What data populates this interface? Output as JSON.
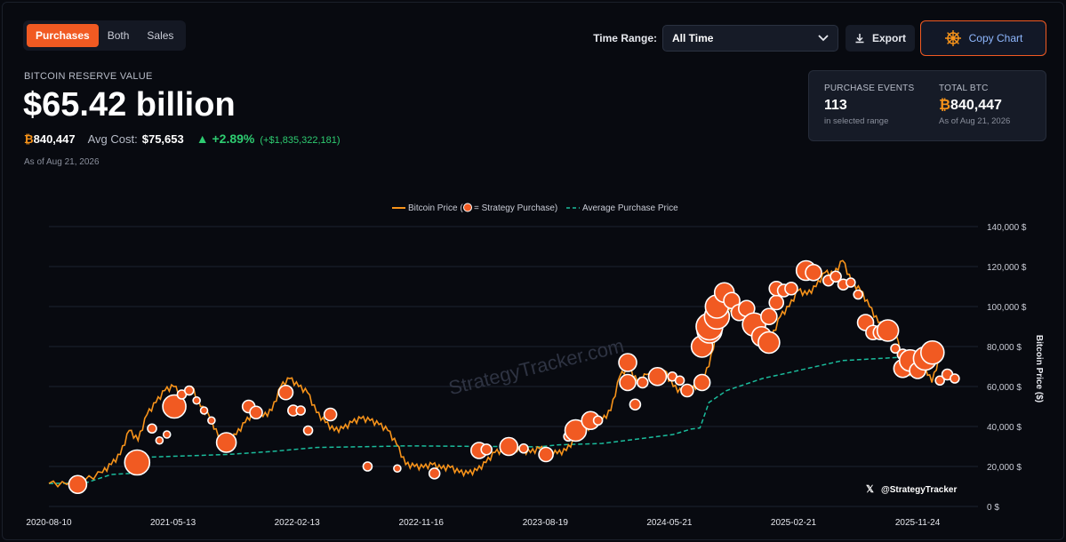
{
  "tabs": [
    {
      "label": "Purchases",
      "active": true
    },
    {
      "label": "Both",
      "active": false
    },
    {
      "label": "Sales",
      "active": false
    }
  ],
  "time_range": {
    "label": "Time Range:",
    "value": "All Time"
  },
  "export_label": "Export",
  "copy_chart_label": "Copy Chart",
  "header": {
    "reserve_label": "BITCOIN RESERVE VALUE",
    "reserve_value": "$65.42 billion",
    "btc_symbol": "₿",
    "btc_amount": "840,447",
    "avg_cost_label": "Avg Cost:",
    "avg_cost_value": "$75,653",
    "change_pct": "▲ +2.89%",
    "change_abs": "(+$1,835,322,181)",
    "as_of": "As of Aug 21, 2026"
  },
  "stats": {
    "purchase_events_label": "PURCHASE EVENTS",
    "purchase_events_value": "113",
    "purchase_events_sub": "in selected range",
    "total_btc_label": "TOTAL BTC",
    "total_btc_value": "840,447",
    "total_btc_sub": "As of Aug 21, 2026"
  },
  "colors": {
    "accent": "#f15a22",
    "price_line": "#f7931a",
    "avg_line": "#1abc9c",
    "positive": "#2ecc71"
  },
  "chart_data": {
    "type": "line",
    "legend": {
      "price_label_pre": "Bitcoin Price (",
      "price_label_post": " = Strategy Purchase)",
      "avg_label": "Average Purchase Price",
      "position": "top-center"
    },
    "ylabel": "Bitcoin Price ($)",
    "ylim": [
      0,
      140000
    ],
    "y_ticks": [
      "0 $",
      "20,000 $",
      "40,000 $",
      "60,000 $",
      "80,000 $",
      "100,000 $",
      "120,000 $",
      "140,000 $"
    ],
    "x_ticks": [
      "2020-08-10",
      "2021-05-13",
      "2022-02-13",
      "2022-11-16",
      "2023-08-19",
      "2024-05-21",
      "2025-02-21",
      "2025-11-24"
    ],
    "watermark": "StrategyTracker.com",
    "handle": "@StrategyTracker",
    "grid": true,
    "series": [
      {
        "name": "Bitcoin Price",
        "points": [
          [
            0,
            11500
          ],
          [
            0.02,
            11000
          ],
          [
            0.04,
            13000
          ],
          [
            0.06,
            17000
          ],
          [
            0.07,
            21000
          ],
          [
            0.08,
            26000
          ],
          [
            0.09,
            38000
          ],
          [
            0.1,
            33000
          ],
          [
            0.11,
            46000
          ],
          [
            0.12,
            52000
          ],
          [
            0.13,
            58000
          ],
          [
            0.14,
            60000
          ],
          [
            0.15,
            55000
          ],
          [
            0.16,
            60000
          ],
          [
            0.17,
            50000
          ],
          [
            0.18,
            45000
          ],
          [
            0.19,
            35000
          ],
          [
            0.2,
            32000
          ],
          [
            0.21,
            36000
          ],
          [
            0.22,
            42000
          ],
          [
            0.23,
            47000
          ],
          [
            0.24,
            45000
          ],
          [
            0.25,
            48000
          ],
          [
            0.26,
            60000
          ],
          [
            0.27,
            64000
          ],
          [
            0.28,
            60000
          ],
          [
            0.29,
            57000
          ],
          [
            0.3,
            47000
          ],
          [
            0.31,
            42000
          ],
          [
            0.32,
            38000
          ],
          [
            0.33,
            39000
          ],
          [
            0.34,
            42000
          ],
          [
            0.35,
            44000
          ],
          [
            0.36,
            43000
          ],
          [
            0.37,
            41000
          ],
          [
            0.38,
            38000
          ],
          [
            0.39,
            31000
          ],
          [
            0.4,
            21000
          ],
          [
            0.41,
            20000
          ],
          [
            0.42,
            19500
          ],
          [
            0.43,
            21000
          ],
          [
            0.44,
            19000
          ],
          [
            0.45,
            19500
          ],
          [
            0.46,
            17000
          ],
          [
            0.47,
            16500
          ],
          [
            0.48,
            18000
          ],
          [
            0.49,
            22000
          ],
          [
            0.5,
            27000
          ],
          [
            0.51,
            28000
          ],
          [
            0.52,
            30000
          ],
          [
            0.53,
            28000
          ],
          [
            0.54,
            27000
          ],
          [
            0.55,
            29000
          ],
          [
            0.56,
            27500
          ],
          [
            0.57,
            26500
          ],
          [
            0.58,
            28000
          ],
          [
            0.59,
            34000
          ],
          [
            0.6,
            37000
          ],
          [
            0.61,
            42000
          ],
          [
            0.62,
            43000
          ],
          [
            0.63,
            48000
          ],
          [
            0.64,
            65000
          ],
          [
            0.65,
            70000
          ],
          [
            0.66,
            62000
          ],
          [
            0.67,
            66000
          ],
          [
            0.68,
            62000
          ],
          [
            0.69,
            68000
          ],
          [
            0.7,
            60000
          ],
          [
            0.71,
            57000
          ],
          [
            0.72,
            58000
          ],
          [
            0.73,
            62000
          ],
          [
            0.74,
            70000
          ],
          [
            0.75,
            90000
          ],
          [
            0.76,
            97000
          ],
          [
            0.77,
            100000
          ],
          [
            0.78,
            95000
          ],
          [
            0.79,
            85000
          ],
          [
            0.8,
            90000
          ],
          [
            0.81,
            84000
          ],
          [
            0.82,
            95000
          ],
          [
            0.83,
            100000
          ],
          [
            0.84,
            108000
          ],
          [
            0.85,
            106000
          ],
          [
            0.86,
            110000
          ],
          [
            0.87,
            117000
          ],
          [
            0.88,
            116000
          ],
          [
            0.89,
            123000
          ],
          [
            0.9,
            112000
          ],
          [
            0.91,
            108000
          ],
          [
            0.92,
            100000
          ],
          [
            0.93,
            92000
          ],
          [
            0.94,
            88000
          ],
          [
            0.95,
            86000
          ],
          [
            0.96,
            66000
          ],
          [
            0.97,
            68000
          ],
          [
            0.98,
            72000
          ],
          [
            0.99,
            62000
          ],
          [
            1.0,
            77000
          ]
        ]
      },
      {
        "name": "Average Purchase Price",
        "points": [
          [
            0,
            11500
          ],
          [
            0.04,
            11600
          ],
          [
            0.07,
            16000
          ],
          [
            0.09,
            16500
          ],
          [
            0.1,
            24500
          ],
          [
            0.2,
            26000
          ],
          [
            0.25,
            27500
          ],
          [
            0.3,
            29500
          ],
          [
            0.37,
            30000
          ],
          [
            0.4,
            30300
          ],
          [
            0.55,
            29800
          ],
          [
            0.57,
            30800
          ],
          [
            0.62,
            31500
          ],
          [
            0.7,
            36000
          ],
          [
            0.72,
            38700
          ],
          [
            0.73,
            39300
          ],
          [
            0.74,
            52000
          ],
          [
            0.76,
            58000
          ],
          [
            0.8,
            64000
          ],
          [
            0.83,
            67000
          ],
          [
            0.86,
            70000
          ],
          [
            0.89,
            73000
          ],
          [
            0.95,
            74500
          ],
          [
            1.0,
            75650
          ]
        ]
      }
    ],
    "purchases": [
      [
        0.02,
        11000,
        10
      ],
      [
        0.1,
        22000,
        14
      ],
      [
        0.12,
        39000,
        5
      ],
      [
        0.13,
        33000,
        4
      ],
      [
        0.14,
        36000,
        4
      ],
      [
        0.15,
        50000,
        13
      ],
      [
        0.16,
        56000,
        5
      ],
      [
        0.17,
        58000,
        5
      ],
      [
        0.18,
        53000,
        4
      ],
      [
        0.19,
        48000,
        4
      ],
      [
        0.2,
        43000,
        4
      ],
      [
        0.22,
        32000,
        11
      ],
      [
        0.25,
        50000,
        7
      ],
      [
        0.26,
        47000,
        7
      ],
      [
        0.3,
        57000,
        8
      ],
      [
        0.31,
        48000,
        6
      ],
      [
        0.32,
        48000,
        5
      ],
      [
        0.33,
        38000,
        5
      ],
      [
        0.36,
        46000,
        7
      ],
      [
        0.41,
        20000,
        5
      ],
      [
        0.45,
        19000,
        4
      ],
      [
        0.5,
        16500,
        6
      ],
      [
        0.56,
        28000,
        9
      ],
      [
        0.57,
        28500,
        6
      ],
      [
        0.6,
        30000,
        10
      ],
      [
        0.62,
        29000,
        5
      ],
      [
        0.65,
        26000,
        8
      ],
      [
        0.68,
        35000,
        5
      ],
      [
        0.69,
        38000,
        12
      ],
      [
        0.71,
        43000,
        10
      ],
      [
        0.72,
        43000,
        5
      ],
      [
        0.76,
        72000,
        10
      ],
      [
        0.76,
        62000,
        9
      ],
      [
        0.77,
        51000,
        6
      ],
      [
        0.78,
        62000,
        6
      ],
      [
        0.8,
        65000,
        10
      ],
      [
        0.82,
        65000,
        5
      ],
      [
        0.83,
        63000,
        5
      ],
      [
        0.84,
        58000,
        7
      ],
      [
        0.86,
        62000,
        9
      ],
      [
        0.86,
        80000,
        12
      ],
      [
        0.87,
        88000,
        14
      ],
      [
        0.87,
        90000,
        15
      ],
      [
        0.88,
        95000,
        14
      ],
      [
        0.88,
        100000,
        13
      ],
      [
        0.89,
        107000,
        11
      ],
      [
        0.9,
        103000,
        9
      ],
      [
        0.91,
        97000,
        9
      ],
      [
        0.92,
        99000,
        9
      ],
      [
        0.93,
        91000,
        13
      ],
      [
        0.94,
        85000,
        11
      ],
      [
        0.95,
        82000,
        12
      ],
      [
        0.95,
        95000,
        9
      ],
      [
        0.96,
        102000,
        8
      ],
      [
        0.96,
        109000,
        8
      ],
      [
        0.97,
        108000,
        7
      ],
      [
        0.98,
        109000,
        7
      ],
      [
        1.0,
        118000,
        11
      ],
      [
        1.01,
        117000,
        9
      ],
      [
        1.03,
        113000,
        6
      ],
      [
        1.04,
        115000,
        6
      ],
      [
        1.05,
        111000,
        6
      ],
      [
        1.06,
        112000,
        5
      ],
      [
        1.07,
        106000,
        5
      ],
      [
        1.08,
        92000,
        9
      ],
      [
        1.09,
        87000,
        8
      ],
      [
        1.1,
        87000,
        8
      ],
      [
        1.11,
        88000,
        12
      ],
      [
        1.12,
        79000,
        5
      ],
      [
        1.13,
        76000,
        6
      ],
      [
        1.13,
        69000,
        10
      ],
      [
        1.14,
        73000,
        12
      ],
      [
        1.15,
        68000,
        9
      ],
      [
        1.16,
        74000,
        13
      ],
      [
        1.17,
        77000,
        13
      ],
      [
        1.18,
        63000,
        5
      ],
      [
        1.19,
        66000,
        6
      ],
      [
        1.2,
        64000,
        5
      ]
    ]
  }
}
